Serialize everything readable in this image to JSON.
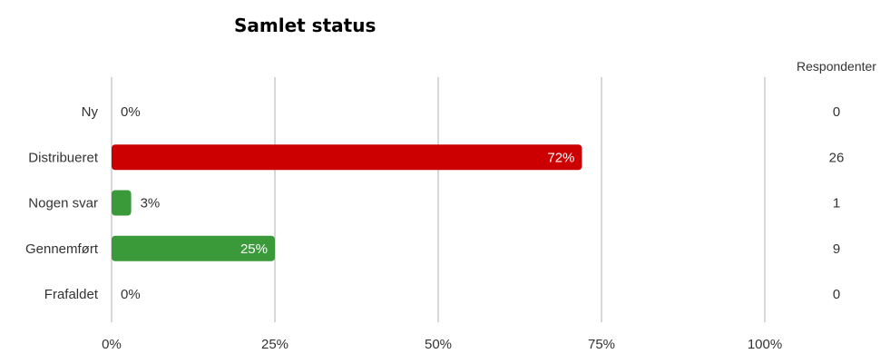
{
  "chart_data": {
    "type": "bar",
    "orientation": "horizontal",
    "title": "Samlet status",
    "categories": [
      "Ny",
      "Distribueret",
      "Nogen svar",
      "Gennemført",
      "Frafaldet"
    ],
    "values": [
      0,
      72,
      3,
      25,
      0
    ],
    "value_labels": [
      "0%",
      "72%",
      "3%",
      "25%",
      "0%"
    ],
    "bar_colors": [
      "#3a9a3a",
      "#cc0000",
      "#3a9a3a",
      "#3a9a3a",
      "#3a9a3a"
    ],
    "xlim": [
      0,
      100
    ],
    "x_ticks": [
      0,
      25,
      50,
      75,
      100
    ],
    "x_tick_labels": [
      "0%",
      "25%",
      "50%",
      "75%",
      "100%"
    ],
    "grid": true,
    "respondents_header": "Respondenter",
    "respondents": [
      "0",
      "26",
      "1",
      "9",
      "0"
    ]
  }
}
